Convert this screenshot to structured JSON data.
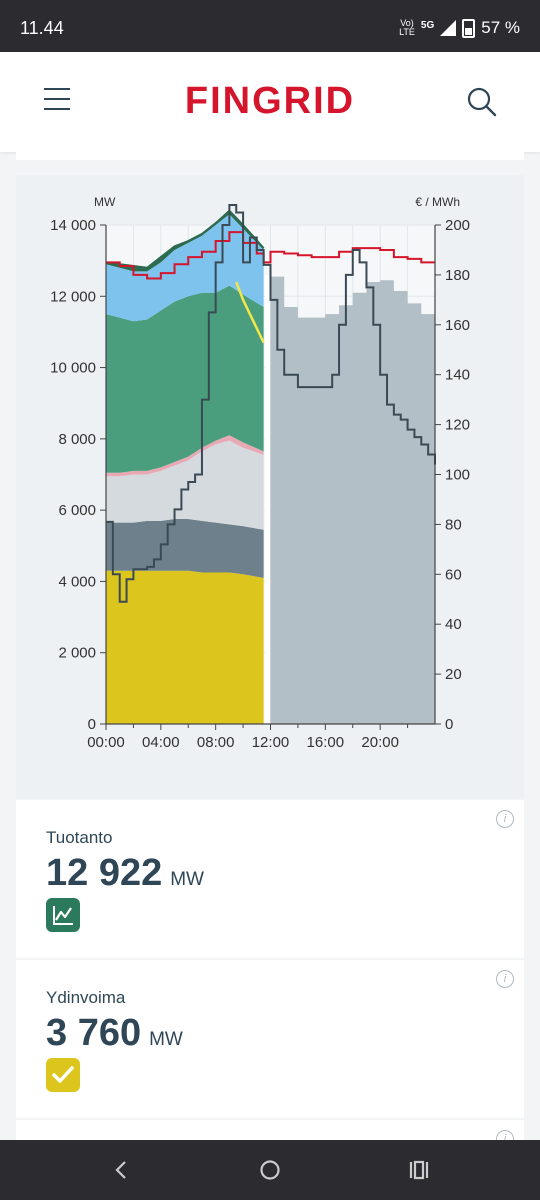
{
  "status": {
    "time": "11.44",
    "network_top": "Vo)",
    "network_bottom": "LTE",
    "gen": "5G",
    "battery": "57 %"
  },
  "header": {
    "logo": "FINGRID"
  },
  "chart": {
    "ylabel_left": "MW",
    "ylabel_right": "€ / MWh",
    "left_ticks": [
      "0",
      "2 000",
      "4 000",
      "6 000",
      "8 000",
      "10 000",
      "12 000",
      "14 000"
    ],
    "right_ticks": [
      "0",
      "20",
      "40",
      "60",
      "80",
      "100",
      "120",
      "140",
      "160",
      "180",
      "200"
    ],
    "x_ticks": [
      "00:00",
      "04:00",
      "08:00",
      "12:00",
      "16:00",
      "20:00"
    ]
  },
  "chart_data": {
    "type": "area",
    "x_hours": [
      0,
      1,
      2,
      3,
      4,
      5,
      6,
      7,
      8,
      9,
      10,
      11.5
    ],
    "ylim_left": [
      0,
      14000
    ],
    "ylim_right": [
      0,
      200
    ],
    "series": [
      {
        "name": "",
        "color": "#dcc61e",
        "values": [
          4300,
          4300,
          4300,
          4300,
          4300,
          4300,
          4300,
          4250,
          4250,
          4250,
          4200,
          4100
        ]
      },
      {
        "name": "",
        "color": "#6e808c",
        "values": [
          5650,
          5650,
          5650,
          5700,
          5700,
          5750,
          5750,
          5700,
          5650,
          5600,
          5550,
          5450
        ]
      },
      {
        "name": "",
        "color": "#d5dade",
        "values": [
          6950,
          6950,
          7000,
          7000,
          7100,
          7250,
          7400,
          7650,
          7850,
          7950,
          7750,
          7550
        ]
      },
      {
        "name": "",
        "color": "#e9a9b4",
        "values": [
          7050,
          7050,
          7100,
          7100,
          7200,
          7350,
          7500,
          7750,
          7950,
          8100,
          7900,
          7650
        ]
      },
      {
        "name": "",
        "color": "#4a9e7e",
        "values": [
          11500,
          11400,
          11300,
          11350,
          11600,
          11850,
          12000,
          12100,
          12100,
          12300,
          12050,
          11700
        ]
      },
      {
        "name": "",
        "color": "#7ec3ee",
        "values": [
          12900,
          12800,
          12700,
          12700,
          12950,
          13300,
          13500,
          13700,
          14000,
          14300,
          13900,
          13300
        ]
      },
      {
        "name": "",
        "color": "#2c6b4f",
        "values": [
          12950,
          12900,
          12850,
          12800,
          13100,
          13400,
          13550,
          13750,
          14050,
          14400,
          14000,
          13350
        ]
      }
    ],
    "forecast_area": {
      "color": "#b3bfc6",
      "x_hours": [
        12,
        13,
        14,
        15,
        16,
        17,
        18,
        19,
        20,
        21,
        22,
        23,
        24
      ],
      "values": [
        12550,
        11700,
        11400,
        11400,
        11500,
        11750,
        12100,
        12400,
        12450,
        12150,
        11800,
        11500,
        11450
      ]
    },
    "price_line": {
      "color": "#3a4a55",
      "x_hours": [
        0,
        0.5,
        1,
        1.5,
        2,
        3,
        3.5,
        4,
        4.5,
        5,
        5.5,
        6,
        6.5,
        7,
        7.5,
        8,
        8.5,
        9,
        9.5,
        10,
        10.5,
        11,
        11.5,
        12,
        12.5,
        13,
        13.5,
        14,
        15,
        16,
        16.5,
        17,
        17.5,
        18,
        18.5,
        19,
        19.5,
        20,
        20.5,
        21,
        21.5,
        22,
        22.5,
        23,
        23.5,
        24
      ],
      "values": [
        81,
        60,
        49,
        58,
        62,
        63,
        66,
        72,
        80,
        86,
        94,
        97,
        100,
        130,
        165,
        185,
        200,
        208,
        205,
        185,
        195,
        190,
        184,
        170,
        150,
        140,
        140,
        135,
        135,
        135,
        140,
        160,
        180,
        190,
        185,
        175,
        160,
        140,
        128,
        124,
        122,
        118,
        115,
        112,
        108,
        104
      ]
    },
    "red_line": {
      "color": "#d5152b",
      "x_hours": [
        0,
        1,
        2,
        3,
        4,
        5,
        6,
        7,
        8,
        9,
        10,
        11,
        11.5,
        12,
        13,
        14,
        15,
        16,
        17,
        18,
        19,
        20,
        21,
        22,
        23,
        24
      ],
      "values": [
        12950,
        12850,
        12600,
        12500,
        12650,
        12900,
        13100,
        13250,
        13550,
        13800,
        13500,
        13200,
        12950,
        13250,
        13200,
        13150,
        13100,
        13100,
        13250,
        13350,
        13350,
        13300,
        13100,
        13050,
        12950,
        12950
      ]
    },
    "yellow_line": {
      "color": "#f2e64a",
      "x_hours": [
        9.5,
        10,
        10.5,
        11,
        11.5
      ],
      "values": [
        12400,
        11900,
        11500,
        11100,
        10700
      ]
    }
  },
  "cards": [
    {
      "label": "Tuotanto",
      "value": "12 922",
      "unit": "MW",
      "icon": "chart-line-icon",
      "color": "#2c7a5c"
    },
    {
      "label": "Ydinvoima",
      "value": "3 760",
      "unit": "MW",
      "icon": "checkmark-icon",
      "color": "#dcc61e"
    }
  ]
}
